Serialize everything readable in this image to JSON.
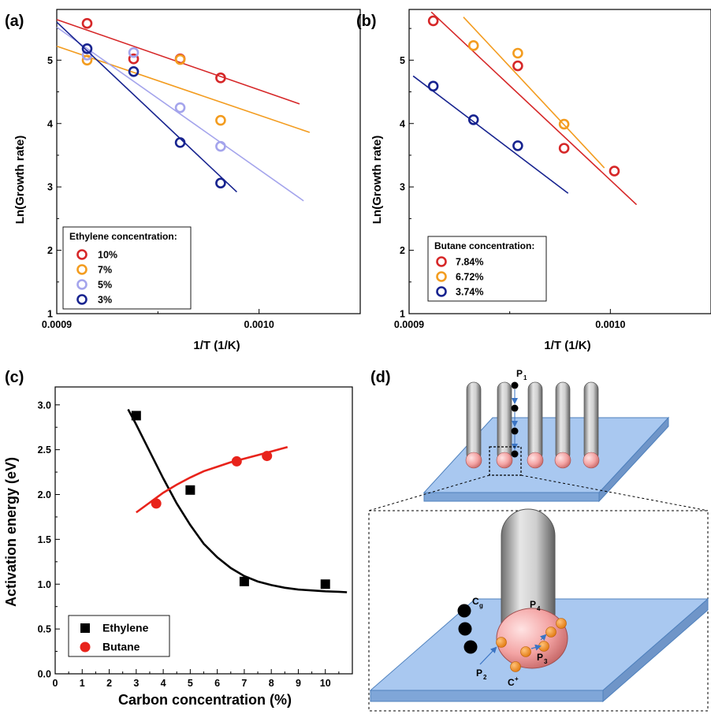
{
  "panels": {
    "a": {
      "label": "(a)"
    },
    "b": {
      "label": "(b)"
    },
    "c": {
      "label": "(c)"
    },
    "d": {
      "label": "(d)"
    }
  },
  "chart_data": [
    {
      "id": "a",
      "type": "scatter",
      "title": "",
      "xlabel": "1/T (1/K)",
      "ylabel": "Ln(Growth rate)",
      "xlim": [
        0.0009,
        0.00105
      ],
      "ylim": [
        1,
        5.8
      ],
      "xticks": [
        0.0009,
        0.001
      ],
      "xtick_labels": [
        "0.0009",
        "0.0010"
      ],
      "yticks": [
        1,
        2,
        3,
        4,
        5
      ],
      "grid": false,
      "legend": {
        "title": "Ethylene concentration:",
        "position": "bottom-left"
      },
      "series": [
        {
          "name": "10%",
          "color": "#d62728",
          "x": [
            0.000915,
            0.000938,
            0.000961,
            0.000981
          ],
          "y": [
            5.58,
            5.02,
            5.02,
            4.72
          ],
          "fit": {
            "x": [
              0.0009,
              0.00102
            ],
            "y": [
              5.64,
              4.31
            ]
          }
        },
        {
          "name": "7%",
          "color": "#f39c1f",
          "x": [
            0.000915,
            0.000961,
            0.000981
          ],
          "y": [
            5.0,
            5.01,
            4.05
          ],
          "fit": {
            "x": [
              0.0009,
              0.001025
            ],
            "y": [
              5.22,
              3.86
            ]
          }
        },
        {
          "name": "5%",
          "color": "#a4a4ec",
          "x": [
            0.000915,
            0.000938,
            0.000961,
            0.000981
          ],
          "y": [
            5.08,
            5.12,
            4.25,
            3.64
          ],
          "fit": {
            "x": [
              0.0009,
              0.001022
            ],
            "y": [
              5.52,
              2.78
            ]
          }
        },
        {
          "name": "3%",
          "color": "#17238f",
          "x": [
            0.000915,
            0.000938,
            0.000961,
            0.000981
          ],
          "y": [
            5.18,
            4.82,
            3.7,
            3.06
          ],
          "fit": {
            "x": [
              0.0009,
              0.000989
            ],
            "y": [
              5.6,
              2.92
            ]
          }
        }
      ]
    },
    {
      "id": "b",
      "type": "scatter",
      "title": "",
      "xlabel": "1/T (1/K)",
      "ylabel": "Ln(Growth rate)",
      "xlim": [
        0.0009,
        0.00105
      ],
      "ylim": [
        1,
        5.8
      ],
      "xticks": [
        0.0009,
        0.001
      ],
      "xtick_labels": [
        "0.0009",
        "0.0010"
      ],
      "yticks": [
        1,
        2,
        3,
        4,
        5
      ],
      "grid": false,
      "legend": {
        "title": "Butane concentration:",
        "position": "bottom-left"
      },
      "series": [
        {
          "name": "7.84%",
          "color": "#d62728",
          "x": [
            0.000912,
            0.000954,
            0.000977,
            0.001002
          ],
          "y": [
            5.62,
            4.91,
            3.61,
            3.25
          ],
          "fit": {
            "x": [
              0.000911,
              0.001013
            ],
            "y": [
              5.76,
              2.72
            ]
          }
        },
        {
          "name": "6.72%",
          "color": "#f39c1f",
          "x": [
            0.000932,
            0.000954,
            0.000977
          ],
          "y": [
            5.23,
            5.11,
            3.99
          ],
          "fit": {
            "x": [
              0.000927,
              0.000997
            ],
            "y": [
              5.68,
              3.3
            ]
          }
        },
        {
          "name": "3.74%",
          "color": "#17238f",
          "x": [
            0.000912,
            0.000932,
            0.000954
          ],
          "y": [
            4.59,
            4.06,
            3.65
          ],
          "fit": {
            "x": [
              0.000902,
              0.000979
            ],
            "y": [
              4.75,
              2.9
            ]
          }
        }
      ]
    },
    {
      "id": "c",
      "type": "scatter",
      "title": "",
      "xlabel": "Carbon concentration (%)",
      "ylabel": "Activation energy (eV)",
      "xlim": [
        0,
        11
      ],
      "ylim": [
        0,
        3.2
      ],
      "xticks": [
        0,
        1,
        2,
        3,
        4,
        5,
        6,
        7,
        8,
        9,
        10
      ],
      "yticks": [
        0.0,
        0.5,
        1.0,
        1.5,
        2.0,
        2.5,
        3.0
      ],
      "ytick_labels": [
        "0.0",
        "0.5",
        "1.0",
        "1.5",
        "2.0",
        "2.5",
        "3.0"
      ],
      "grid": false,
      "legend": {
        "position": "bottom-left"
      },
      "series": [
        {
          "name": "Ethylene",
          "color": "#000000",
          "marker": "square",
          "x": [
            3.0,
            5.0,
            7.0,
            10.0
          ],
          "y": [
            2.88,
            2.05,
            1.03,
            1.0
          ],
          "fit_curve": {
            "x": [
              2.7,
              3.0,
              3.5,
              4.0,
              4.5,
              5.0,
              5.5,
              6.0,
              6.5,
              7.0,
              7.5,
              8.0,
              8.5,
              9.0,
              9.5,
              10.0,
              10.5,
              10.8
            ],
            "y": [
              2.95,
              2.78,
              2.48,
              2.18,
              1.9,
              1.66,
              1.45,
              1.3,
              1.18,
              1.09,
              1.03,
              0.99,
              0.96,
              0.94,
              0.93,
              0.92,
              0.915,
              0.91
            ]
          }
        },
        {
          "name": "Butane",
          "color": "#e8231b",
          "marker": "circle",
          "x": [
            3.74,
            6.72,
            7.84
          ],
          "y": [
            1.9,
            2.37,
            2.43
          ],
          "fit_curve": {
            "x": [
              3.0,
              3.5,
              4.0,
              4.5,
              5.0,
              5.5,
              6.0,
              6.5,
              7.0,
              7.5,
              8.0,
              8.6
            ],
            "y": [
              1.8,
              1.91,
              2.02,
              2.11,
              2.19,
              2.26,
              2.31,
              2.36,
              2.4,
              2.44,
              2.48,
              2.53
            ]
          }
        }
      ]
    }
  ],
  "diagram": {
    "top_labels": {
      "p1": "P",
      "p1_sub": "1"
    },
    "zoom_labels": {
      "cg": "C",
      "cg_sub": "g",
      "p4": "P",
      "p4_sub": "4",
      "p3": "P",
      "p3_sub": "3",
      "p2": "P",
      "p2_sub": "2",
      "cplus": "C",
      "cplus_sup": "+"
    },
    "colors": {
      "substrate": "#a9c8f0",
      "substrate_edge": "#4f81bd",
      "tube": "#9e9e9e",
      "catalyst": "#f4a6a6",
      "carbon_ion": "#f28c1e",
      "carbon_gas": "#000000",
      "arrow": "#3a74c4"
    }
  }
}
